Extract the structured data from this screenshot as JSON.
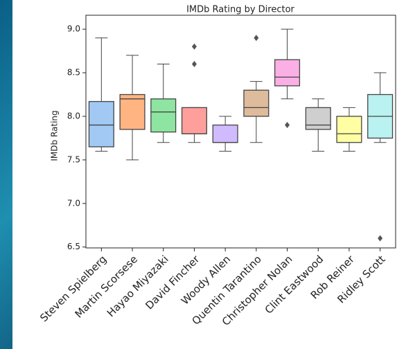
{
  "chart_data": {
    "type": "box",
    "title": "IMDb Rating by Director",
    "ylabel": "IMDb Rating",
    "categories": [
      "Steven Spielberg",
      "Martin Scorsese",
      "Hayao Miyazaki",
      "David Fincher",
      "Woody Allen",
      "Quentin Tarantino",
      "Christopher Nolan",
      "Clint Eastwood",
      "Rob Reiner",
      "Ridley Scott"
    ],
    "colors": [
      "#a1c9f4",
      "#ffb482",
      "#8de5a1",
      "#ff9f9b",
      "#d0bbff",
      "#debb9b",
      "#fab0e4",
      "#cfcfcf",
      "#fffea3",
      "#b9f2f0"
    ],
    "low": [
      7.6,
      7.5,
      7.7,
      7.7,
      7.6,
      7.7,
      8.2,
      7.6,
      7.6,
      7.7
    ],
    "q1": [
      7.65,
      7.85,
      7.82,
      7.8,
      7.7,
      8.0,
      8.35,
      7.85,
      7.7,
      7.75
    ],
    "median": [
      7.9,
      8.2,
      8.05,
      7.8,
      7.7,
      8.1,
      8.45,
      7.9,
      7.8,
      8.0
    ],
    "q3": [
      8.17,
      8.25,
      8.2,
      8.1,
      7.9,
      8.3,
      8.65,
      8.1,
      8.0,
      8.25
    ],
    "high": [
      8.9,
      8.7,
      8.6,
      8.1,
      8.0,
      8.4,
      9.0,
      8.2,
      8.1,
      8.5
    ],
    "outliers": [
      [],
      [],
      [],
      [
        8.8,
        8.6
      ],
      [],
      [
        8.9
      ],
      [
        7.9
      ],
      [],
      [],
      [
        6.6
      ]
    ],
    "ylim": [
      6.49,
      9.16
    ],
    "yticks": [
      6.5,
      {
        "value": 7,
        "label": "7.0"
      },
      7.5,
      {
        "value": 8,
        "label": "8.0"
      },
      8.5,
      {
        "value": 9,
        "label": "9.0"
      }
    ]
  }
}
